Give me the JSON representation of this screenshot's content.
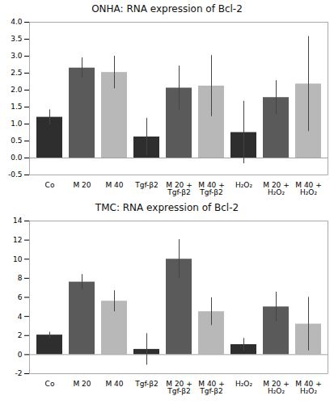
{
  "chart_data": [
    {
      "type": "bar",
      "title": "ONHA: RNA expression of Bcl-2",
      "categories": [
        "Co",
        "M 20",
        "M 40",
        "Tgf-β2",
        "M 20 +\nTgf-β2",
        "M 40 +\nTgf-β2",
        "H₂O₂",
        "M 20 +\nH₂O₂",
        "M 40 +\nH₂O₂"
      ],
      "values": [
        1.2,
        2.65,
        2.52,
        0.62,
        2.06,
        2.12,
        0.75,
        1.78,
        2.18
      ],
      "errors": [
        0.22,
        0.3,
        0.48,
        0.55,
        0.65,
        0.9,
        0.92,
        0.5,
        1.4
      ],
      "colors": [
        "#2e2e2e",
        "#5a5a5a",
        "#b8b8b8",
        "#2e2e2e",
        "#5a5a5a",
        "#b8b8b8",
        "#2e2e2e",
        "#5a5a5a",
        "#b8b8b8"
      ],
      "ylim": [
        -0.5,
        4
      ],
      "yticks": [
        -0.5,
        {
          "value": 0,
          "label": "0.0"
        },
        0.5,
        {
          "value": 1,
          "label": "1.0"
        },
        1.5,
        {
          "value": 2,
          "label": "2.0"
        },
        2.5,
        {
          "value": 3,
          "label": "3.0"
        },
        3.5,
        {
          "value": 4,
          "label": "4.0"
        }
      ],
      "grid": false
    },
    {
      "type": "bar",
      "title": "TMC: RNA expression of Bcl-2",
      "categories": [
        "Co",
        "M 20",
        "M 40",
        "Tgf-β2",
        "M 20 +\nTgf-β2",
        "M 40 +\nTgf-β2",
        "H₂O₂",
        "M 20 +\nH₂O₂",
        "M 40 +\nH₂O₂"
      ],
      "values": [
        2.05,
        7.6,
        5.6,
        0.55,
        10.0,
        4.5,
        1.05,
        5.0,
        3.2
      ],
      "errors": [
        0.3,
        0.8,
        1.1,
        1.65,
        2.05,
        1.45,
        0.65,
        1.55,
        2.8
      ],
      "colors": [
        "#2e2e2e",
        "#5a5a5a",
        "#b8b8b8",
        "#2e2e2e",
        "#5a5a5a",
        "#b8b8b8",
        "#2e2e2e",
        "#5a5a5a",
        "#b8b8b8"
      ],
      "ylim": [
        -2,
        14
      ],
      "yticks": [
        -2,
        0,
        2,
        4,
        6,
        8,
        10,
        12,
        14
      ],
      "grid": false
    }
  ]
}
